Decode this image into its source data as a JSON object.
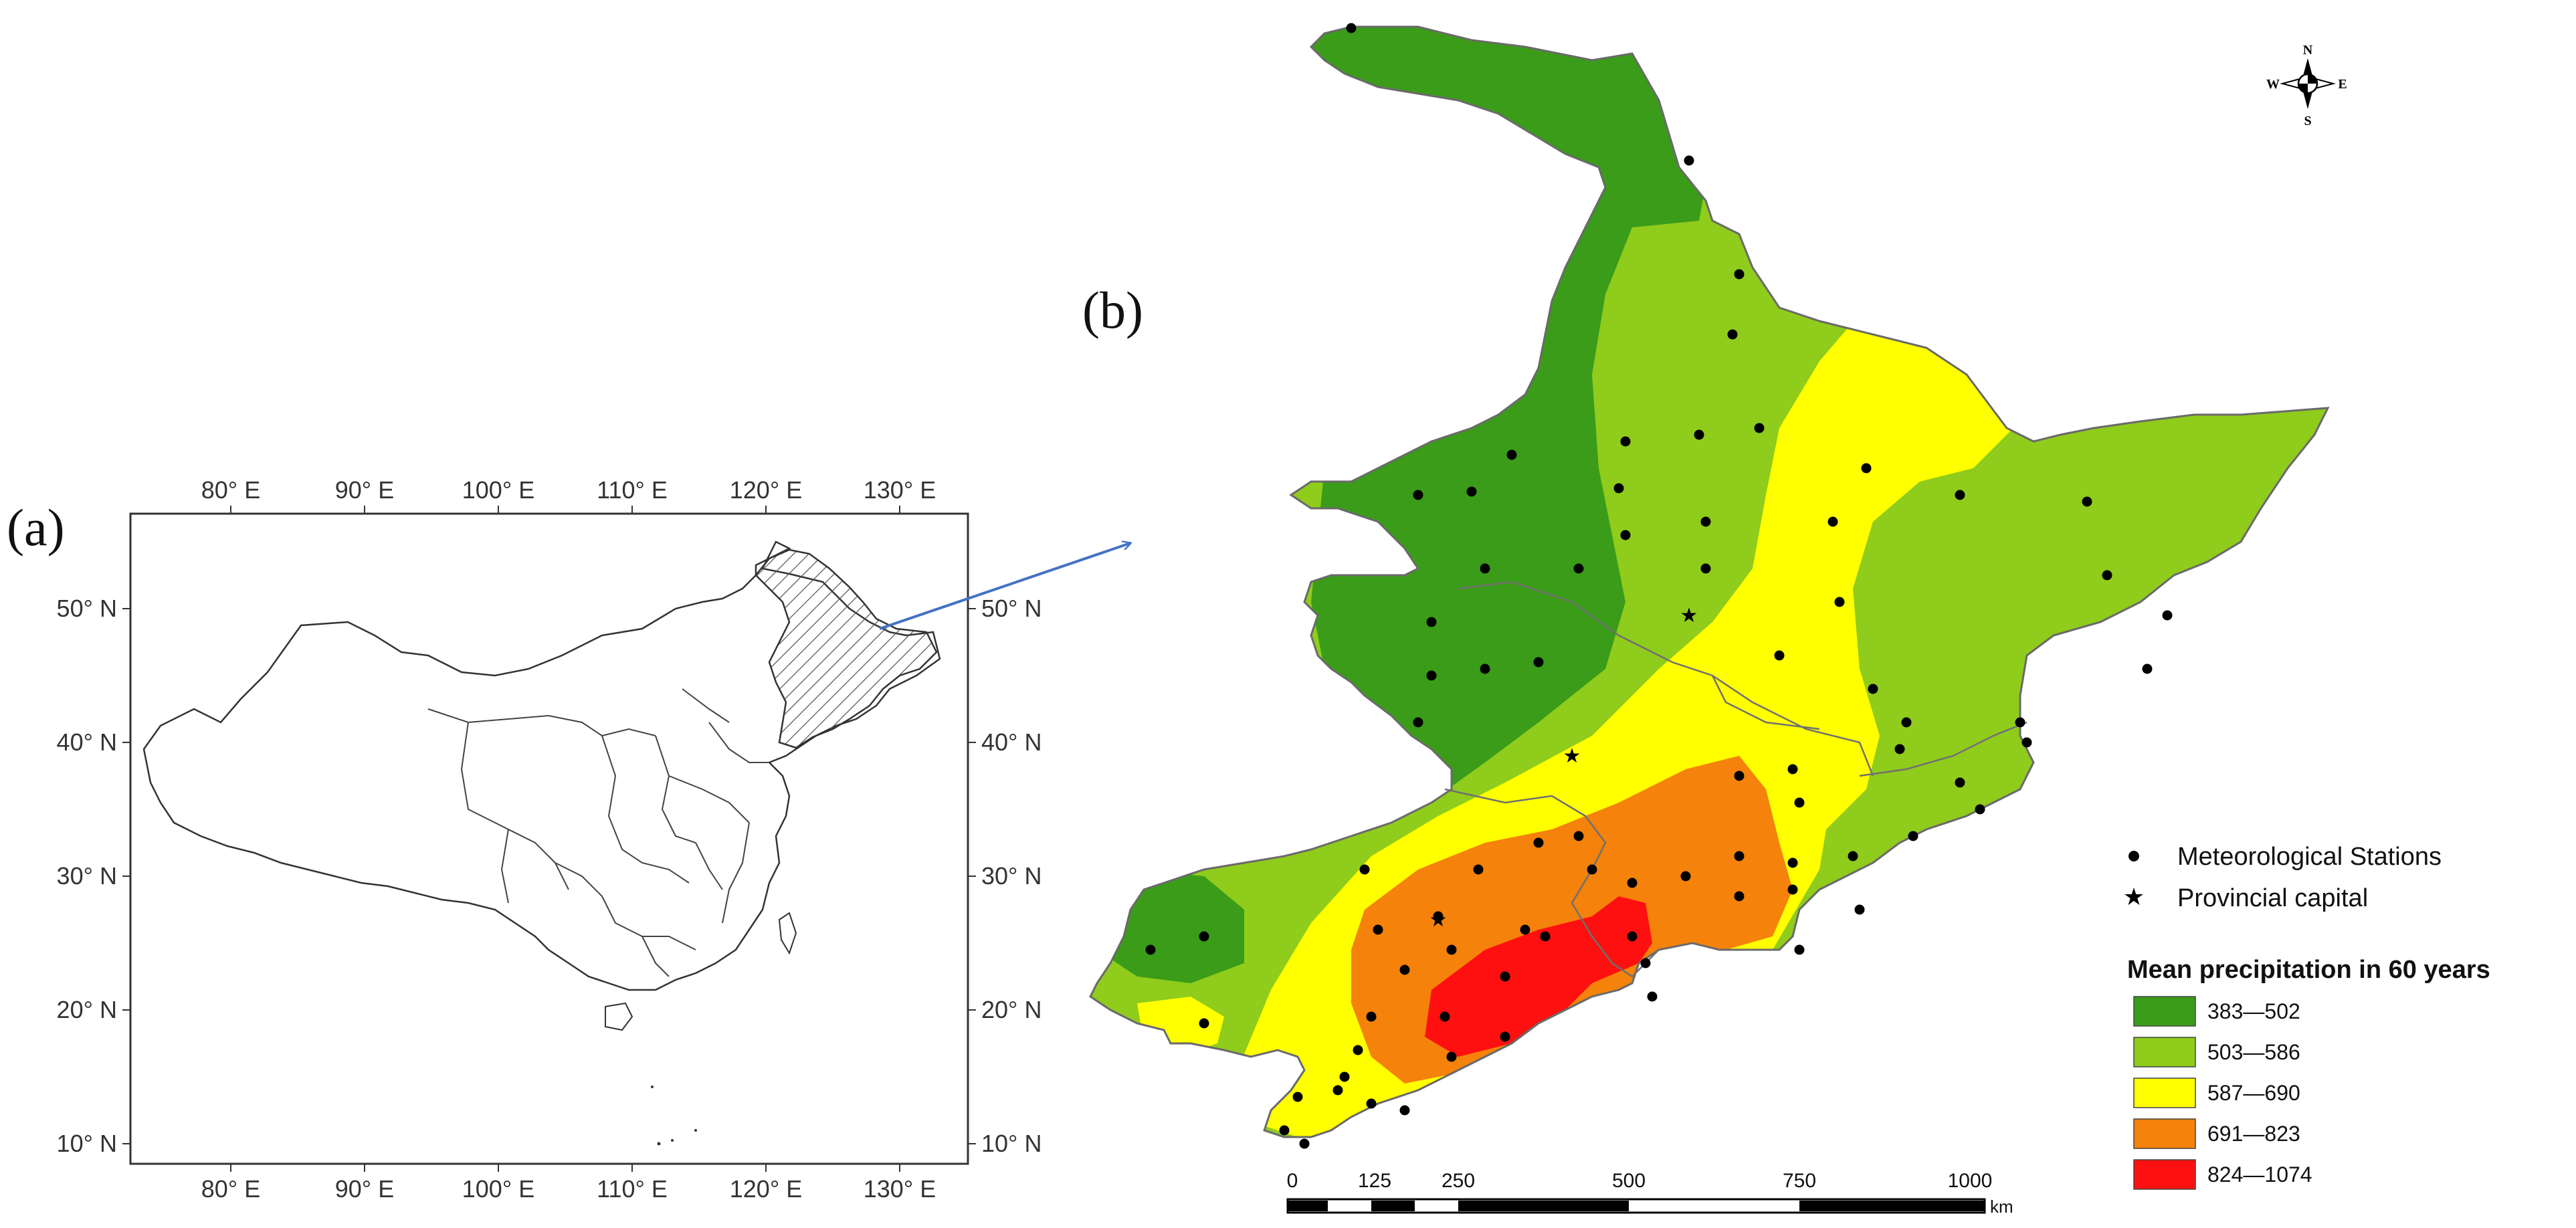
{
  "panel_a": {
    "label": "(a)",
    "lon_ticks": [
      "80° E",
      "90° E",
      "100° E",
      "110° E",
      "120° E",
      "130° E"
    ],
    "lat_ticks": [
      "50° N",
      "40° N",
      "30° N",
      "20° N",
      "10° N"
    ]
  },
  "panel_b": {
    "label": "(b)",
    "compass": {
      "n": "N",
      "s": "S",
      "e": "E",
      "w": "W"
    },
    "legend": {
      "stations_label": "Meteorological Stations",
      "capital_label": "Provincial capital",
      "title": "Mean precipitation in 60 years",
      "classes": [
        {
          "label": "383—502",
          "color": "#3a9c18"
        },
        {
          "label": "503—586",
          "color": "#8fcc1c"
        },
        {
          "label": "587—690",
          "color": "#ffff00"
        },
        {
          "label": "691—823",
          "color": "#f5820a"
        },
        {
          "label": "824—1074",
          "color": "#ff1010"
        }
      ]
    },
    "scale": {
      "ticks": [
        "0",
        "125",
        "250",
        "500",
        "750",
        "1000"
      ],
      "unit": "km"
    }
  }
}
